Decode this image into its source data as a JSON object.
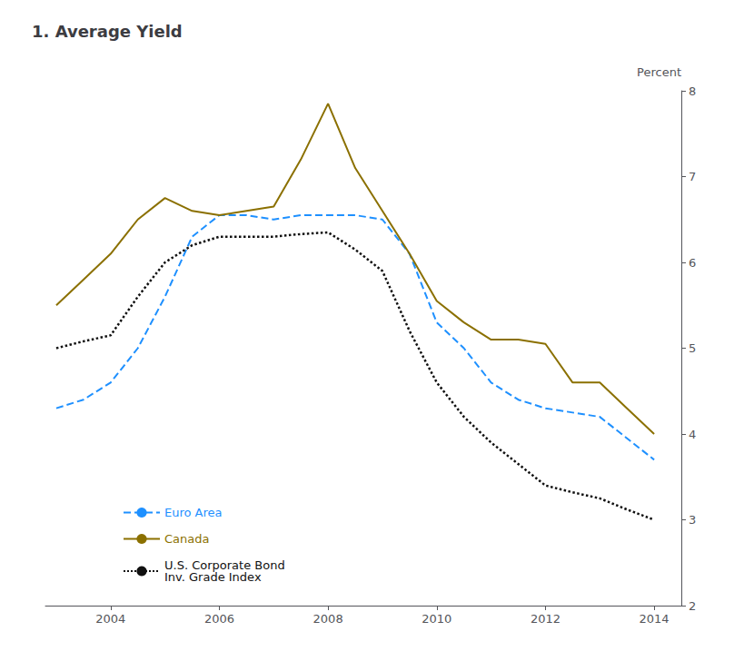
{
  "chart_data": {
    "type": "line",
    "title": "1. Average Yield",
    "ylabel": "Percent",
    "xlim": [
      2002.8,
      2014.5
    ],
    "xticks": [
      2004,
      2006,
      2008,
      2010,
      2012,
      2014
    ],
    "ylim": [
      2,
      8
    ],
    "yticks": [
      2,
      3,
      4,
      5,
      6,
      7,
      8
    ],
    "grid": false,
    "legend": "lower left",
    "x": [
      2003,
      2003.5,
      2004,
      2004.5,
      2005,
      2005.5,
      2006,
      2006.5,
      2007,
      2007.5,
      2008,
      2008.5,
      2009,
      2009.5,
      2010,
      2010.5,
      2011,
      2011.5,
      2012,
      2012.5,
      2013,
      2013.5,
      2014
    ],
    "series": [
      {
        "name": "Euro Area",
        "color": "#1e90ff",
        "line_style": "dashed",
        "values": [
          4.3,
          4.4,
          4.6,
          5.0,
          5.6,
          6.3,
          6.55,
          6.55,
          6.5,
          6.55,
          6.55,
          6.55,
          6.5,
          6.1,
          5.3,
          5.0,
          4.6,
          4.4,
          4.3,
          4.25,
          4.2,
          3.95,
          3.7
        ]
      },
      {
        "name": "Canada",
        "color": "#8B7000",
        "line_style": "solid",
        "values": [
          5.5,
          5.8,
          6.1,
          6.5,
          6.75,
          6.6,
          6.55,
          6.6,
          6.65,
          7.2,
          7.85,
          7.1,
          6.6,
          6.1,
          5.55,
          5.3,
          5.1,
          5.1,
          5.05,
          4.6,
          4.6,
          4.3,
          4.0
        ]
      },
      {
        "name": "U.S. Corporate Bond\nInv. Grade Index",
        "color": "#111111",
        "line_style": "dotted",
        "values": [
          5.0,
          5.08,
          5.15,
          5.6,
          6.0,
          6.2,
          6.3,
          6.3,
          6.3,
          6.33,
          6.35,
          6.15,
          5.9,
          5.2,
          4.6,
          4.2,
          3.9,
          3.65,
          3.4,
          3.32,
          3.25,
          3.12,
          3.0
        ]
      }
    ]
  }
}
